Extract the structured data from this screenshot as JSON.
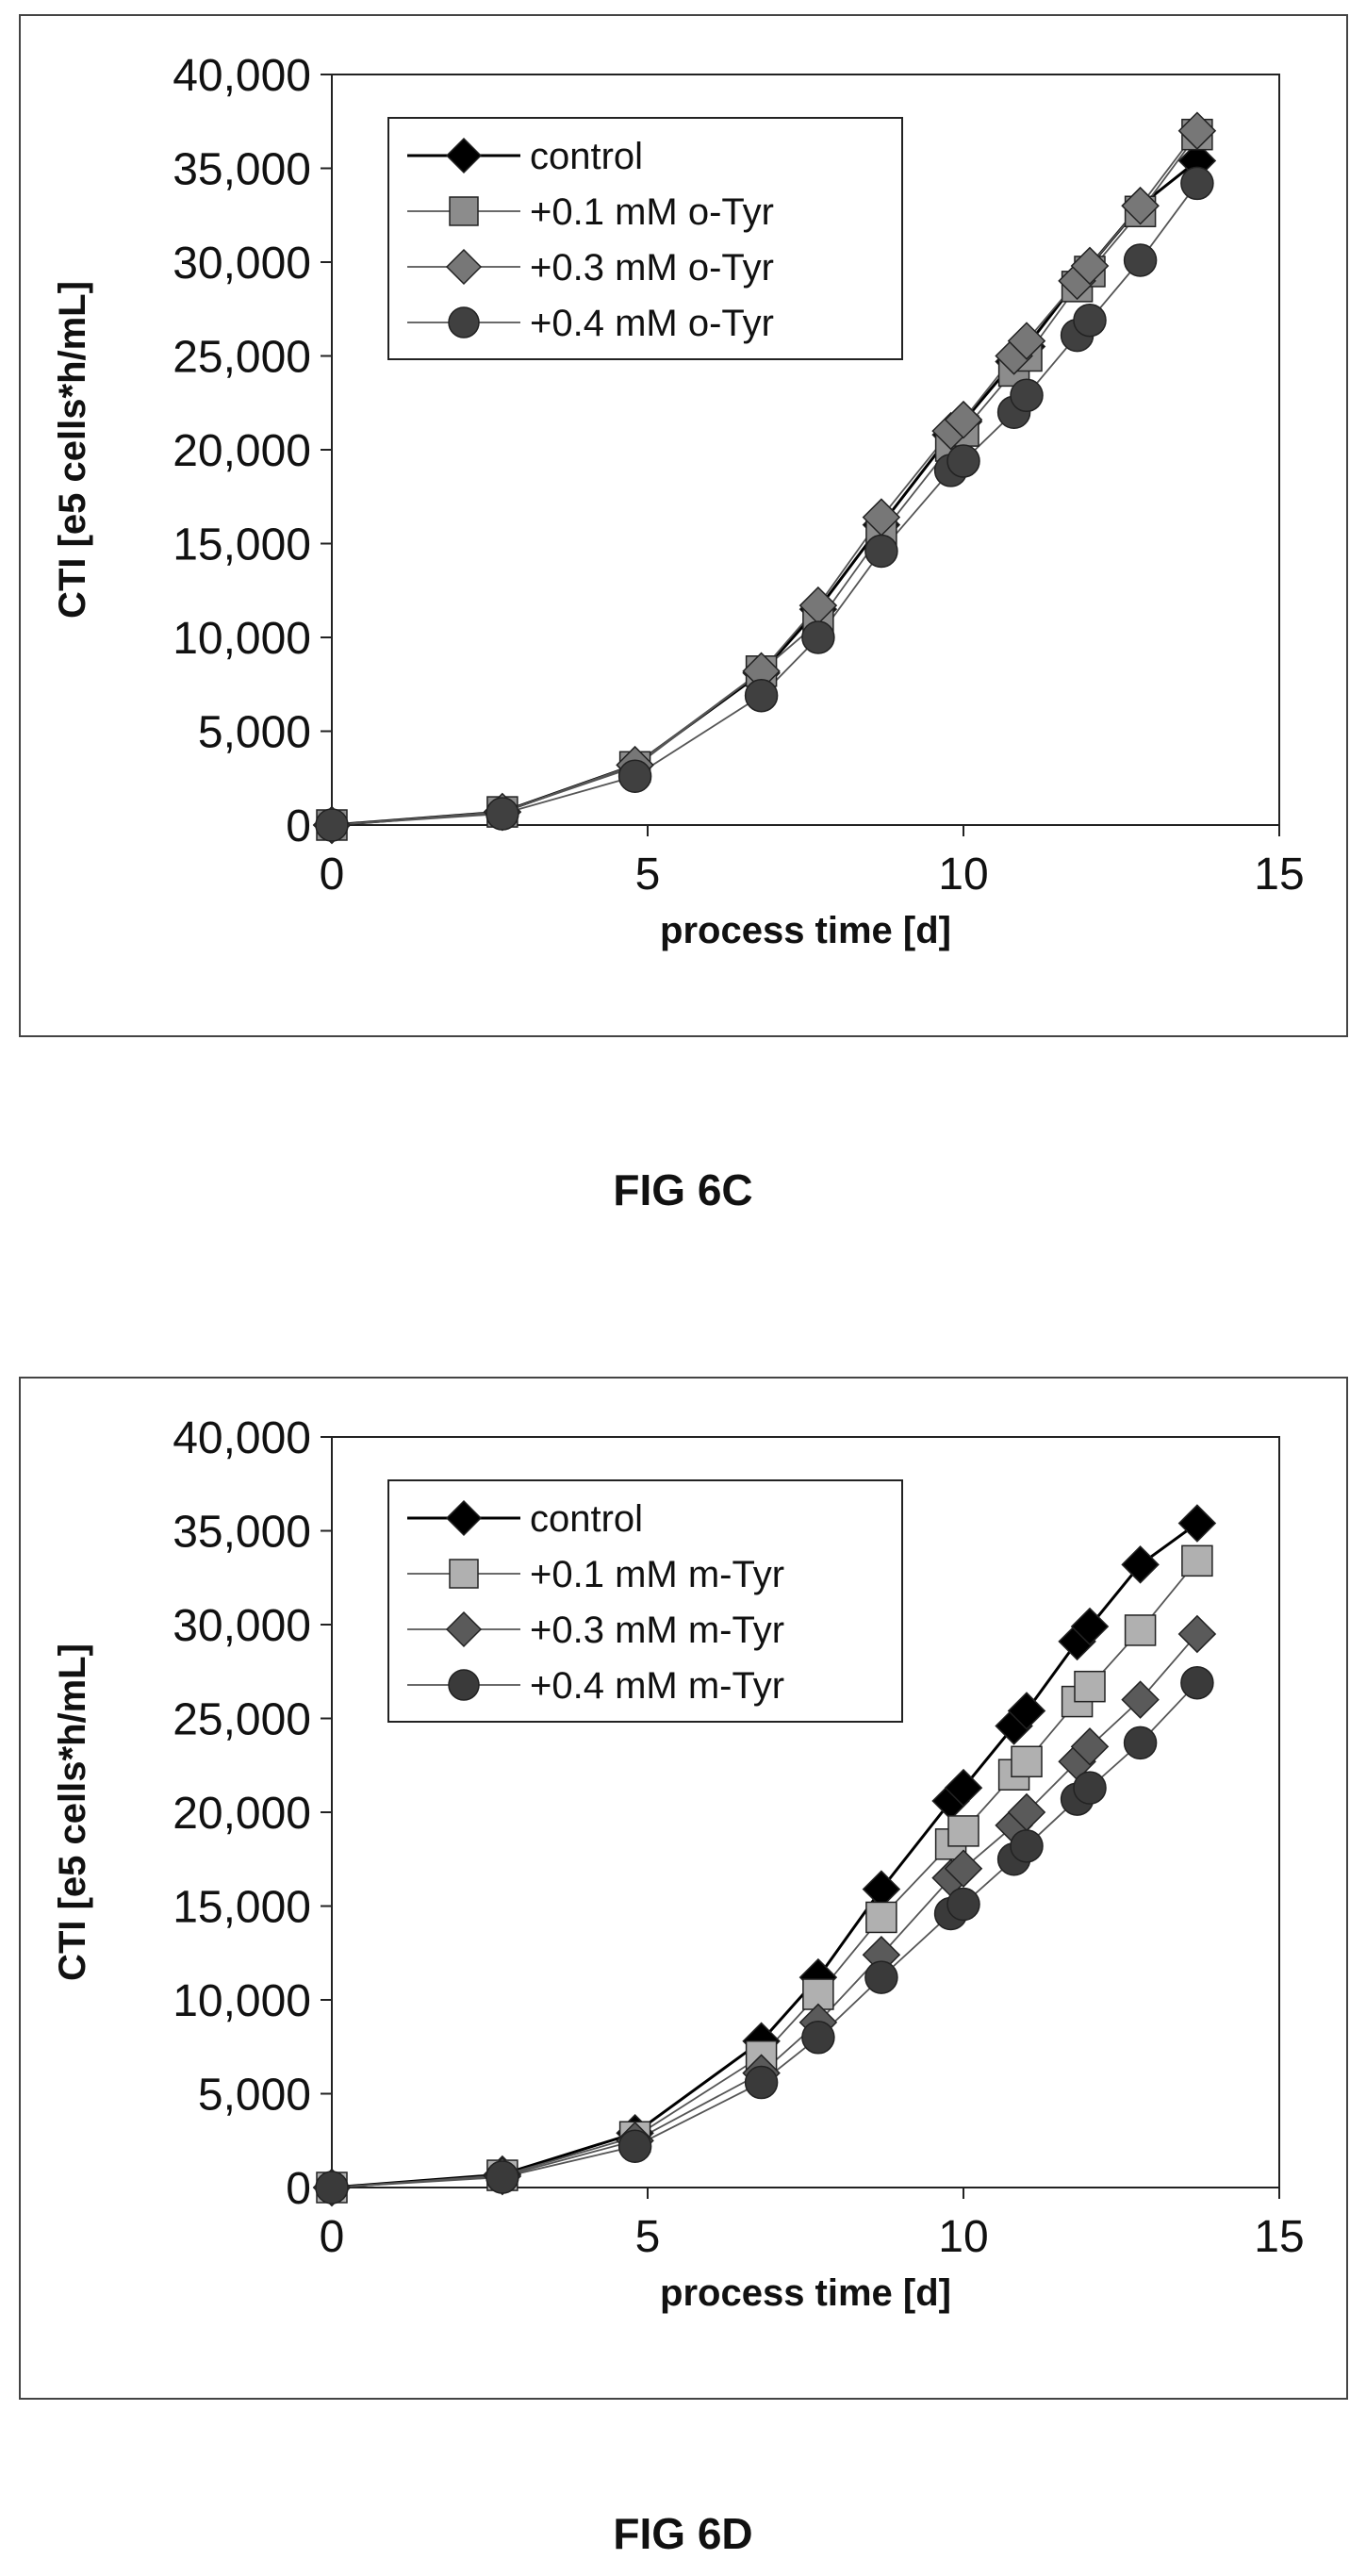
{
  "figures": [
    {
      "caption": "FIG 6C"
    },
    {
      "caption": "FIG 6D"
    }
  ],
  "chart_data": [
    {
      "type": "line",
      "title": "",
      "xlabel": "process time [d]",
      "ylabel": "CTI [e5 cells*h/mL]",
      "xlim": [
        0,
        15
      ],
      "ylim": [
        0,
        40000
      ],
      "xticks": [
        "0",
        "5",
        "10",
        "15"
      ],
      "yticks": [
        "0",
        "5,000",
        "10,000",
        "15,000",
        "20,000",
        "25,000",
        "30,000",
        "35,000",
        "40,000"
      ],
      "grid": false,
      "legend_position": "top-left",
      "series": [
        {
          "name": "control",
          "marker": "diamond",
          "color": "#000000",
          "x": [
            0,
            2.7,
            4.8,
            6.8,
            7.7,
            8.7,
            9.8,
            10,
            10.8,
            11,
            11.8,
            12,
            12.8,
            13.7
          ],
          "y": [
            0,
            700,
            3200,
            8100,
            11500,
            16000,
            20800,
            21500,
            24700,
            25500,
            29000,
            29800,
            33000,
            35400
          ]
        },
        {
          "name": "+0.1 mM o-Tyr",
          "marker": "square",
          "color": "#8c8c8c",
          "x": [
            0,
            2.7,
            4.8,
            6.8,
            7.7,
            8.7,
            9.8,
            10,
            10.8,
            11,
            11.8,
            12,
            12.8,
            13.7
          ],
          "y": [
            0,
            700,
            3100,
            8200,
            10800,
            15500,
            20200,
            21000,
            24200,
            25000,
            28700,
            29500,
            32700,
            36800
          ]
        },
        {
          "name": "+0.3 mM o-Tyr",
          "marker": "diamond",
          "color": "#777777",
          "x": [
            0,
            2.7,
            4.8,
            6.8,
            7.7,
            8.7,
            9.8,
            10,
            10.8,
            11,
            11.8,
            12,
            12.8,
            13.7
          ],
          "y": [
            0,
            700,
            3200,
            8200,
            11700,
            16400,
            21000,
            21600,
            25000,
            25800,
            29000,
            29800,
            33000,
            37000
          ]
        },
        {
          "name": "+0.4 mM o-Tyr",
          "marker": "circle",
          "color": "#404040",
          "x": [
            0,
            2.7,
            4.8,
            6.8,
            7.7,
            8.7,
            9.8,
            10,
            10.8,
            11,
            11.8,
            12,
            12.8,
            13.7
          ],
          "y": [
            0,
            600,
            2600,
            6900,
            10000,
            14600,
            18900,
            19400,
            22000,
            22900,
            26100,
            26900,
            30100,
            34200
          ]
        }
      ]
    },
    {
      "type": "line",
      "title": "",
      "xlabel": "process time [d]",
      "ylabel": "CTI [e5 cells*h/mL]",
      "xlim": [
        0,
        15
      ],
      "ylim": [
        0,
        40000
      ],
      "xticks": [
        "0",
        "5",
        "10",
        "15"
      ],
      "yticks": [
        "0",
        "5,000",
        "10,000",
        "15,000",
        "20,000",
        "25,000",
        "30,000",
        "35,000",
        "40,000"
      ],
      "grid": false,
      "legend_position": "top-left",
      "series": [
        {
          "name": "control",
          "marker": "diamond",
          "color": "#000000",
          "x": [
            0,
            2.7,
            4.8,
            6.8,
            7.7,
            8.7,
            9.8,
            10,
            10.8,
            11,
            11.8,
            12,
            12.8,
            13.7
          ],
          "y": [
            0,
            700,
            2900,
            7800,
            11200,
            15900,
            20600,
            21300,
            24600,
            25400,
            29100,
            29900,
            33200,
            35400
          ]
        },
        {
          "name": "+0.1 mM m-Tyr",
          "marker": "square",
          "color": "#b0b0b0",
          "x": [
            0,
            2.7,
            4.8,
            6.8,
            7.7,
            8.7,
            9.8,
            10,
            10.8,
            11,
            11.8,
            12,
            12.8,
            13.7
          ],
          "y": [
            0,
            650,
            2700,
            7000,
            10300,
            14400,
            18300,
            19000,
            22000,
            22700,
            25900,
            26700,
            29700,
            33400
          ]
        },
        {
          "name": "+0.3 mM m-Tyr",
          "marker": "diamond",
          "color": "#5a5a5a",
          "x": [
            0,
            2.7,
            4.8,
            6.8,
            7.7,
            8.7,
            9.8,
            10,
            10.8,
            11,
            11.8,
            12,
            12.8,
            13.7
          ],
          "y": [
            0,
            600,
            2500,
            6100,
            8800,
            12400,
            16500,
            17000,
            19300,
            20000,
            22700,
            23500,
            26000,
            29500
          ]
        },
        {
          "name": "+0.4 mM m-Tyr",
          "marker": "circle",
          "color": "#3a3a3a",
          "x": [
            0,
            2.7,
            4.8,
            6.8,
            7.7,
            8.7,
            9.8,
            10,
            10.8,
            11,
            11.8,
            12,
            12.8,
            13.7
          ],
          "y": [
            0,
            550,
            2200,
            5600,
            8000,
            11200,
            14600,
            15100,
            17500,
            18200,
            20700,
            21300,
            23700,
            26900
          ]
        }
      ]
    }
  ]
}
